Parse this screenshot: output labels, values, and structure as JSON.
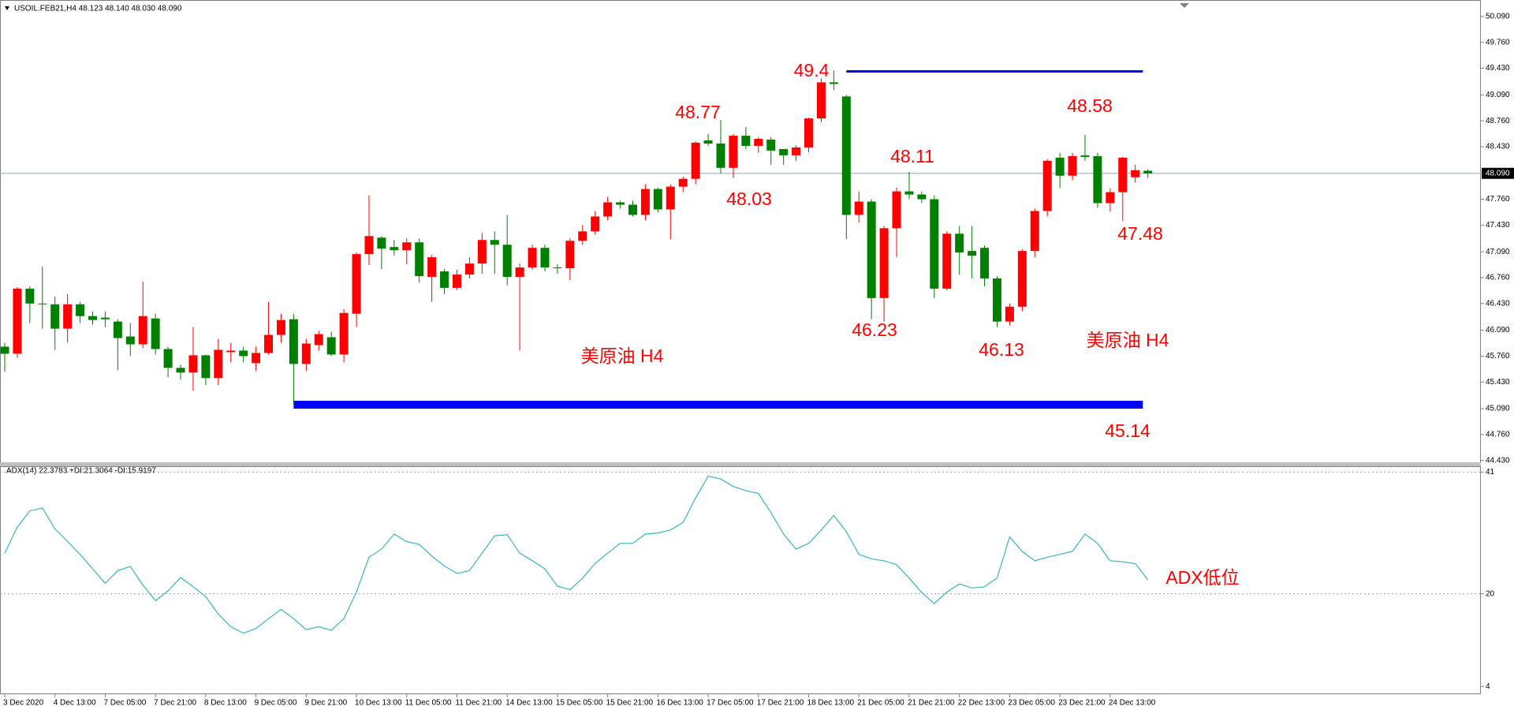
{
  "chart_data": [
    {
      "type": "candlestick",
      "title": "USOIL.FEB21,H4  48.123 48.140 48.030 48.090",
      "categories": [
        "3 Dec 2020",
        null,
        null,
        null,
        "4 Dec 13:00",
        null,
        null,
        null,
        "7 Dec 05:00",
        null,
        null,
        null,
        "7 Dec 21:00",
        null,
        null,
        null,
        "8 Dec 13:00",
        null,
        null,
        null,
        "9 Dec 05:00",
        null,
        null,
        null,
        "9 Dec 21:00",
        null,
        null,
        null,
        "10 Dec 13:00",
        null,
        null,
        null,
        "11 Dec 05:00",
        null,
        null,
        null,
        "11 Dec 21:00",
        null,
        null,
        null,
        "14 Dec 13:00",
        null,
        null,
        null,
        "15 Dec 05:00",
        null,
        null,
        null,
        "15 Dec 21:00",
        null,
        null,
        null,
        "16 Dec 13:00",
        null,
        null,
        null,
        "17 Dec 05:00",
        null,
        null,
        null,
        "17 Dec 21:00",
        null,
        null,
        null,
        "18 Dec 13:00",
        null,
        null,
        null,
        "21 Dec 05:00",
        null,
        null,
        null,
        "21 Dec 21:00",
        null,
        null,
        null,
        "22 Dec 13:00",
        null,
        null,
        null,
        "23 Dec 05:00",
        null,
        null,
        null,
        "23 Dec 21:00",
        null,
        null,
        null,
        "24 Dec 13:00",
        null,
        null,
        null
      ],
      "open": [
        45.88,
        45.79,
        46.62,
        46.43,
        46.42,
        46.11,
        46.42,
        46.27,
        46.25,
        46.2,
        46.01,
        45.91,
        46.24,
        45.85,
        45.61,
        45.55,
        45.77,
        45.48,
        45.81,
        45.83,
        45.67,
        45.8,
        46.03,
        46.23,
        45.66,
        45.9,
        46.0,
        45.78,
        46.3,
        47.06,
        47.27,
        47.15,
        47.11,
        47.21,
        46.77,
        46.84,
        46.63,
        46.8,
        46.94,
        47.24,
        47.18,
        46.77,
        46.89,
        47.14,
        46.89,
        46.88,
        47.23,
        47.35,
        47.54,
        47.72,
        47.69,
        47.56,
        47.89,
        47.63,
        47.92,
        48.02,
        48.51,
        48.47,
        48.16,
        48.57,
        48.44,
        48.52,
        48.4,
        48.32,
        48.42,
        48.79,
        49.25,
        49.07,
        47.56,
        47.73,
        46.5,
        47.39,
        47.86,
        47.82,
        47.76,
        46.62,
        47.32,
        47.1,
        47.14,
        46.75,
        46.2,
        46.39,
        47.1,
        47.61,
        48.29,
        48.06,
        48.32,
        48.31,
        47.71,
        47.85,
        48.04,
        48.123
      ],
      "high": [
        45.93,
        46.64,
        46.65,
        46.9,
        46.52,
        46.55,
        46.45,
        46.33,
        46.33,
        46.23,
        46.18,
        46.71,
        46.3,
        45.88,
        45.65,
        46.13,
        45.78,
        45.98,
        45.93,
        45.88,
        45.88,
        46.45,
        46.3,
        46.3,
        45.98,
        46.08,
        46.07,
        46.36,
        47.08,
        47.81,
        47.29,
        47.24,
        47.26,
        47.26,
        47.05,
        46.87,
        46.86,
        47.02,
        47.33,
        47.35,
        47.56,
        46.94,
        47.18,
        47.18,
        46.93,
        47.26,
        47.43,
        47.61,
        47.79,
        47.74,
        47.74,
        47.95,
        47.91,
        47.95,
        48.05,
        48.5,
        48.59,
        48.77,
        48.59,
        48.68,
        48.55,
        48.55,
        48.4,
        48.45,
        48.8,
        49.3,
        49.4,
        49.09,
        47.86,
        47.76,
        47.42,
        47.91,
        48.11,
        47.86,
        47.81,
        47.35,
        47.42,
        47.42,
        47.17,
        46.78,
        46.43,
        47.12,
        47.64,
        48.27,
        48.35,
        48.35,
        48.58,
        48.35,
        47.9,
        48.3,
        48.2,
        48.14
      ],
      "low": [
        45.56,
        45.74,
        46.18,
        46.11,
        45.84,
        45.93,
        46.18,
        46.16,
        46.13,
        45.58,
        45.76,
        45.86,
        45.78,
        45.49,
        45.46,
        45.32,
        45.39,
        45.39,
        45.68,
        45.68,
        45.57,
        45.78,
        45.93,
        45.14,
        45.57,
        45.83,
        45.76,
        45.68,
        46.13,
        46.92,
        46.87,
        47.04,
        46.93,
        46.7,
        46.45,
        46.55,
        46.6,
        46.75,
        46.81,
        46.81,
        46.66,
        45.83,
        46.86,
        46.84,
        46.81,
        46.73,
        47.18,
        47.31,
        47.49,
        47.64,
        47.54,
        47.49,
        47.59,
        47.25,
        47.85,
        47.95,
        48.44,
        48.09,
        48.03,
        48.4,
        48.35,
        48.2,
        48.2,
        48.25,
        48.36,
        48.74,
        49.15,
        47.25,
        47.46,
        46.23,
        46.2,
        47.02,
        47.76,
        47.71,
        46.5,
        46.6,
        46.8,
        46.75,
        46.65,
        46.13,
        46.15,
        46.33,
        47.02,
        47.54,
        47.9,
        48.0,
        48.25,
        47.65,
        47.6,
        47.48,
        47.97,
        48.03
      ],
      "close": [
        45.79,
        46.62,
        46.43,
        46.42,
        46.11,
        46.42,
        46.27,
        46.22,
        46.23,
        45.99,
        45.91,
        46.27,
        45.85,
        45.61,
        45.55,
        45.77,
        45.48,
        45.84,
        45.83,
        45.76,
        45.8,
        46.03,
        46.22,
        45.66,
        45.92,
        46.04,
        45.78,
        46.31,
        47.06,
        47.29,
        47.13,
        47.11,
        47.21,
        46.78,
        47.02,
        46.63,
        46.8,
        46.94,
        47.24,
        47.18,
        46.77,
        46.89,
        47.14,
        46.89,
        46.88,
        47.23,
        47.35,
        47.54,
        47.72,
        47.69,
        47.56,
        47.89,
        47.63,
        47.92,
        48.02,
        48.48,
        48.47,
        48.16,
        48.57,
        48.44,
        48.53,
        48.38,
        48.32,
        48.42,
        48.79,
        49.25,
        49.23,
        47.56,
        47.73,
        46.5,
        47.39,
        47.86,
        47.82,
        47.76,
        46.62,
        47.32,
        47.08,
        47.04,
        46.75,
        46.2,
        46.39,
        47.1,
        47.61,
        48.25,
        48.06,
        48.31,
        48.3,
        47.71,
        47.85,
        48.29,
        48.13,
        48.09
      ],
      "up_color": "#ff0000",
      "down_color": "#008000",
      "ylim": [
        44.406,
        50.3
      ],
      "yticks": [
        {
          "value": 50.09,
          "label": "50.090"
        },
        {
          "value": 49.76,
          "label": "49.760"
        },
        {
          "value": 49.43,
          "label": "49.430"
        },
        {
          "value": 49.09,
          "label": "49.090"
        },
        {
          "value": 48.76,
          "label": "48.760"
        },
        {
          "value": 48.43,
          "label": "48.430"
        },
        {
          "value": 47.76,
          "label": "47.760"
        },
        {
          "value": 47.43,
          "label": "47.430"
        },
        {
          "value": 47.09,
          "label": "47.090"
        },
        {
          "value": 46.76,
          "label": "46.760"
        },
        {
          "value": 46.43,
          "label": "46.430"
        },
        {
          "value": 46.09,
          "label": "46.090"
        },
        {
          "value": 45.76,
          "label": "45.760"
        },
        {
          "value": 45.43,
          "label": "45.430"
        },
        {
          "value": 45.09,
          "label": "45.090"
        },
        {
          "value": 44.76,
          "label": "44.760"
        },
        {
          "value": 44.43,
          "label": "44.430"
        }
      ],
      "last_price": {
        "value": 48.09,
        "label": "48.090"
      },
      "levels": [
        {
          "value": 49.39,
          "color": "#0000ff"
        },
        {
          "value": 45.14,
          "color": "#0000ff"
        }
      ],
      "annotations": [
        "49.4",
        "48.77",
        "48.03",
        "48.11",
        "46.23",
        "46.13",
        "48.58",
        "47.48",
        "45.14",
        "美原油  H4",
        "美原油 H4"
      ]
    },
    {
      "type": "line",
      "title": "ADX(14) 22.3783 +DI:21.3064 -DI:15.9197",
      "values": [
        27,
        31.5,
        34.3,
        34.8,
        31.2,
        29,
        26.8,
        24.3,
        21.8,
        24,
        24.7,
        21.5,
        18.8,
        20.5,
        22.8,
        21.2,
        19.5,
        16.5,
        14.3,
        13.2,
        14,
        15.7,
        17.3,
        15.7,
        13.8,
        14.3,
        13.7,
        15.7,
        20.3,
        26.3,
        27.7,
        30.3,
        29,
        28.5,
        26.5,
        24.8,
        23.5,
        24,
        27,
        30,
        30.2,
        27,
        25.7,
        24.3,
        21.3,
        20.7,
        22.7,
        25.2,
        27,
        28.7,
        28.7,
        30.3,
        30.5,
        31,
        32.3,
        36.5,
        40.3,
        39.8,
        38.5,
        37.8,
        37.3,
        34,
        30.3,
        27.7,
        28.7,
        31,
        33.5,
        30.7,
        26.8,
        26,
        25.7,
        25,
        22.7,
        20.2,
        18.3,
        20.3,
        21.7,
        21,
        21.2,
        22.7,
        29.8,
        27.3,
        25.7,
        26.3,
        26.8,
        27.3,
        30.3,
        28.7,
        25.7,
        25.5,
        25.2,
        22.4
      ],
      "color": "#3cb4bc",
      "ylim": [
        2.67,
        42
      ],
      "yticks": [
        41,
        20,
        4
      ],
      "grid": true,
      "annotations": [
        "ADX低位"
      ]
    }
  ]
}
